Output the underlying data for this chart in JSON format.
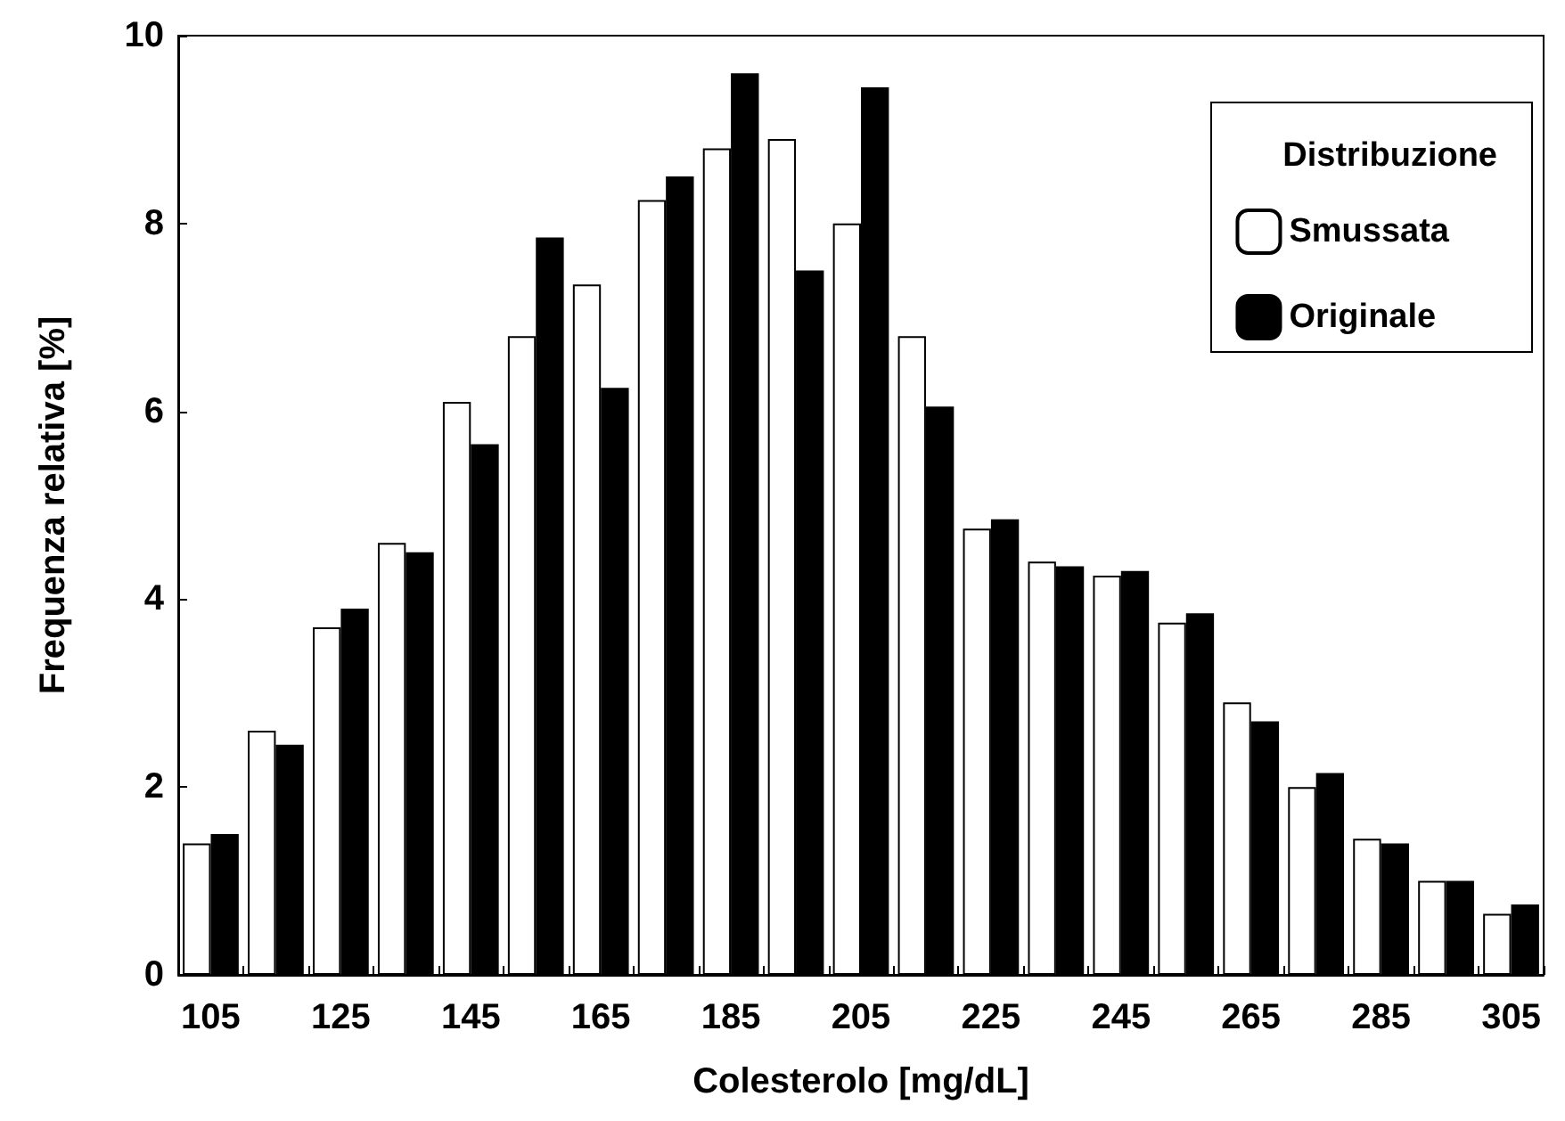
{
  "chart_data": {
    "type": "bar",
    "xlabel": "Colesterolo [mg/dL]",
    "ylabel": "Frequenza relativa [%]",
    "legend_title": "Distribuzione",
    "categories": [
      "105",
      null,
      "125",
      null,
      "145",
      null,
      "165",
      null,
      "185",
      null,
      "205",
      null,
      "225",
      null,
      "245",
      null,
      "265",
      null,
      "285",
      null,
      "305"
    ],
    "series": [
      {
        "name": "Smussata",
        "color": "#ffffff",
        "values": [
          1.4,
          2.6,
          3.7,
          4.6,
          6.1,
          6.8,
          7.35,
          8.25,
          8.8,
          8.9,
          8.0,
          6.8,
          4.75,
          4.4,
          4.25,
          3.75,
          2.9,
          2.0,
          1.45,
          1.0,
          0.65
        ]
      },
      {
        "name": "Originale",
        "color": "#000000",
        "values": [
          1.5,
          2.45,
          3.9,
          4.5,
          5.65,
          7.85,
          6.25,
          8.5,
          9.6,
          7.5,
          9.45,
          6.05,
          4.85,
          4.35,
          4.3,
          3.85,
          2.7,
          2.15,
          1.4,
          1.0,
          0.75
        ]
      }
    ],
    "ylim": [
      0,
      10
    ],
    "yticks": [
      0,
      2,
      4,
      6,
      8,
      10
    ],
    "grid": false,
    "legend": "top right"
  }
}
